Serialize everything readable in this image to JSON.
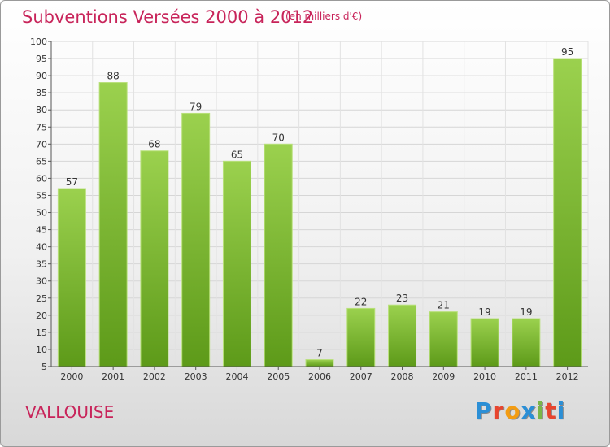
{
  "title": "Subventions Versées 2000 à 2012",
  "subtitle": "(en milliers d'€)",
  "commune": "VALLOUISE",
  "logo": {
    "letters": [
      "P",
      "r",
      "o",
      "x",
      "i",
      "t",
      "i"
    ],
    "colors": [
      "#2b8fd6",
      "#e8452e",
      "#f39c12",
      "#2b8fd6",
      "#7ab648",
      "#e8452e",
      "#2b8fd6"
    ]
  },
  "chart_data": {
    "type": "bar",
    "categories": [
      "2000",
      "2001",
      "2002",
      "2003",
      "2004",
      "2005",
      "2006",
      "2007",
      "2008",
      "2009",
      "2010",
      "2011",
      "2012"
    ],
    "values": [
      57,
      88,
      68,
      79,
      65,
      70,
      7,
      22,
      23,
      21,
      19,
      19,
      95
    ],
    "ylim": [
      5,
      100
    ],
    "yticks": [
      5,
      10,
      15,
      20,
      25,
      30,
      35,
      40,
      45,
      50,
      55,
      60,
      65,
      70,
      75,
      80,
      85,
      90,
      95,
      100
    ],
    "grid": true,
    "bar_color_top": "#9bd14e",
    "bar_color_bottom": "#5d9a19"
  }
}
